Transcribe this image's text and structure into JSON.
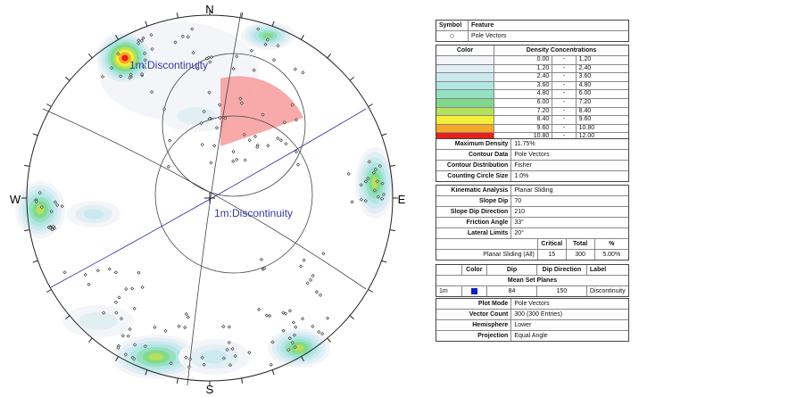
{
  "stereonet": {
    "north": "N",
    "east": "E",
    "south": "S",
    "west": "W",
    "annotations": [
      "1m:Discontinuity",
      "1m:Discontinuity"
    ]
  },
  "symbol_table": {
    "header": [
      "Symbol",
      "Feature"
    ],
    "rows": [
      [
        "◇",
        "Pole Vectors"
      ]
    ]
  },
  "density_table": {
    "header": [
      "Color",
      "Density Concentrations"
    ],
    "colors": [
      "#f4f5f8",
      "#e1eef4",
      "#cbeaf0",
      "#b2e6e2",
      "#94e0c2",
      "#82d98c",
      "#b5e05a",
      "#f2ee3a",
      "#f5a82a",
      "#e82018"
    ],
    "rows": [
      [
        "0.00",
        "-",
        "1.20"
      ],
      [
        "1.20",
        "-",
        "2.40"
      ],
      [
        "2.40",
        "-",
        "3.60"
      ],
      [
        "3.60",
        "-",
        "4.80"
      ],
      [
        "4.80",
        "-",
        "6.00"
      ],
      [
        "6.00",
        "-",
        "7.20"
      ],
      [
        "7.20",
        "-",
        "8.40"
      ],
      [
        "8.40",
        "-",
        "9.60"
      ],
      [
        "9.60",
        "-",
        "10.80"
      ],
      [
        "10.80",
        "-",
        "12.00"
      ]
    ]
  },
  "contour_info": [
    [
      "Maximum Density",
      "11.75%"
    ],
    [
      "Contour Data",
      "Pole Vectors"
    ],
    [
      "Contour Distribution",
      "Fisher"
    ],
    [
      "Counting Circle Size",
      "1.0%"
    ]
  ],
  "kinematic": {
    "rows": [
      [
        "Kinematic Analysis",
        "Planar Sliding"
      ],
      [
        "Slope Dip",
        "70"
      ],
      [
        "Slope Dip Direction",
        "210"
      ],
      [
        "Friction Angle",
        "33°"
      ],
      [
        "Lateral Limits",
        "20°"
      ]
    ],
    "result_header": [
      "Critical",
      "Total",
      "%"
    ],
    "result_row": [
      "Planar Sliding (All)",
      "15",
      "300",
      "5.00%"
    ]
  },
  "mean_set": {
    "header": [
      "Color",
      "Dip",
      "Dip Direction",
      "Label"
    ],
    "title": "Mean Set Planes",
    "row": [
      "1m",
      "84",
      "150",
      "Discontinuity"
    ],
    "color": "#1020c0"
  },
  "plot_info": [
    [
      "Plot Mode",
      "Pole Vectors"
    ],
    [
      "Vector Count",
      "300 (300 Entries)"
    ],
    [
      "Hemisphere",
      "Lower"
    ],
    [
      "Projection",
      "Equal Angle"
    ]
  ]
}
